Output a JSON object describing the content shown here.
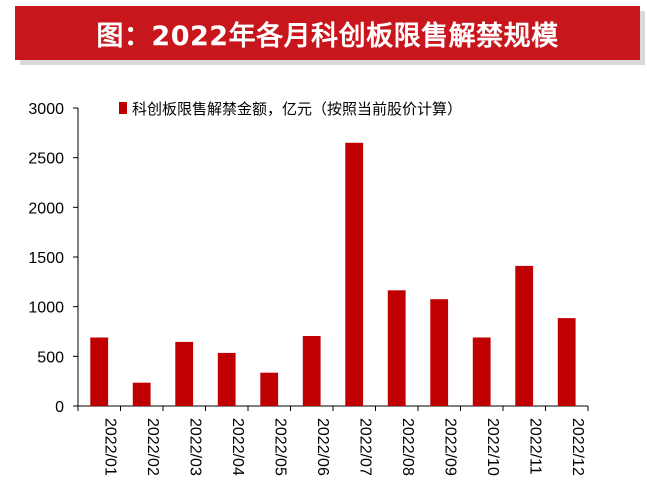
{
  "header": {
    "title": "图：2022年各月科创板限售解禁规模"
  },
  "colors": {
    "accent": "#c8161d",
    "bar": "#c00000",
    "axis": "#000000"
  },
  "chart_data": {
    "type": "bar",
    "title": "图：2022年各月科创板限售解禁规模",
    "xlabel": "",
    "ylabel": "",
    "ylim": [
      0,
      3000
    ],
    "yticks": [
      0,
      500,
      1000,
      1500,
      2000,
      2500,
      3000
    ],
    "grid": false,
    "legend_position": "top",
    "categories": [
      "2022/01",
      "2022/02",
      "2022/03",
      "2022/04",
      "2022/05",
      "2022/06",
      "2022/07",
      "2022/08",
      "2022/09",
      "2022/10",
      "2022/11",
      "2022/12"
    ],
    "series": [
      {
        "name": "科创板限售解禁金额，亿元（按照当前股价计算）",
        "values": [
          690,
          235,
          645,
          535,
          335,
          705,
          2650,
          1165,
          1075,
          690,
          1410,
          885
        ]
      }
    ]
  }
}
